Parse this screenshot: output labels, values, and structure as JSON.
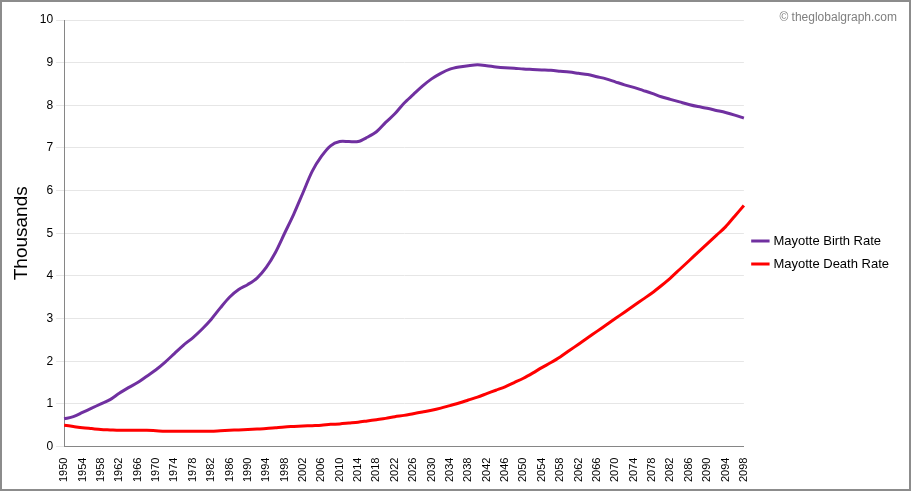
{
  "chart_data": {
    "type": "line",
    "ylabel": "Thousands",
    "annotations": [
      "© theglobalgraph.com"
    ],
    "categories": [
      "1950",
      null,
      "1954",
      null,
      "1958",
      null,
      "1962",
      null,
      "1966",
      null,
      "1970",
      null,
      "1974",
      null,
      "1978",
      null,
      "1982",
      null,
      "1986",
      null,
      "1990",
      null,
      "1994",
      null,
      "1998",
      null,
      "2002",
      null,
      "2006",
      null,
      "2010",
      null,
      "2014",
      null,
      "2018",
      null,
      "2022",
      null,
      "2026",
      null,
      "2030",
      null,
      "2034",
      null,
      "2038",
      null,
      "2042",
      null,
      "2046",
      null,
      "2050",
      null,
      "2054",
      null,
      "2058",
      null,
      "2062",
      null,
      "2066",
      null,
      "2070",
      null,
      "2074",
      null,
      "2078",
      null,
      "2082",
      null,
      "2086",
      null,
      "2090",
      null,
      "2094",
      null,
      "2098"
    ],
    "series": [
      {
        "name": "Mayotte Birth Rate",
        "color": "#7030a0",
        "values": [
          0.65,
          0.7,
          0.8,
          0.9,
          1.0,
          1.1,
          1.25,
          1.38,
          1.5,
          1.65,
          1.8,
          1.98,
          2.18,
          2.38,
          2.55,
          2.75,
          2.98,
          3.25,
          3.5,
          3.68,
          3.8,
          3.95,
          4.2,
          4.55,
          5.0,
          5.45,
          5.95,
          6.45,
          6.8,
          7.05,
          7.15,
          7.15,
          7.15,
          7.25,
          7.38,
          7.6,
          7.8,
          8.05,
          8.25,
          8.45,
          8.62,
          8.75,
          8.85,
          8.9,
          8.93,
          8.95,
          8.93,
          8.9,
          8.88,
          8.87,
          8.85,
          8.84,
          8.83,
          8.82,
          8.8,
          8.78,
          8.75,
          8.72,
          8.67,
          8.62,
          8.55,
          8.48,
          8.42,
          8.35,
          8.28,
          8.2,
          8.14,
          8.08,
          8.02,
          7.97,
          7.93,
          7.88,
          7.83,
          7.77,
          7.7
        ]
      },
      {
        "name": "Mayotte Death Rate",
        "color": "#ff0000",
        "values": [
          0.5,
          0.47,
          0.44,
          0.42,
          0.4,
          0.39,
          0.38,
          0.38,
          0.38,
          0.38,
          0.37,
          0.36,
          0.36,
          0.36,
          0.36,
          0.36,
          0.36,
          0.37,
          0.38,
          0.39,
          0.4,
          0.41,
          0.42,
          0.44,
          0.46,
          0.47,
          0.48,
          0.49,
          0.5,
          0.52,
          0.53,
          0.55,
          0.57,
          0.6,
          0.63,
          0.66,
          0.7,
          0.73,
          0.77,
          0.81,
          0.85,
          0.9,
          0.96,
          1.02,
          1.09,
          1.16,
          1.24,
          1.32,
          1.4,
          1.5,
          1.6,
          1.72,
          1.85,
          1.97,
          2.1,
          2.25,
          2.4,
          2.55,
          2.7,
          2.85,
          3.0,
          3.15,
          3.3,
          3.45,
          3.6,
          3.77,
          3.95,
          4.15,
          4.35,
          4.55,
          4.75,
          4.95,
          5.15,
          5.4,
          5.65
        ]
      }
    ],
    "ylim": [
      0,
      10
    ],
    "yticks": [
      0,
      1,
      2,
      3,
      4,
      5,
      6,
      7,
      8,
      9,
      10
    ],
    "grid": true,
    "legend": "right"
  }
}
